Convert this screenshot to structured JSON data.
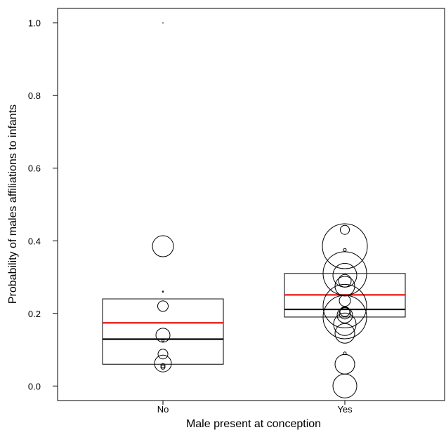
{
  "chart_data": {
    "type": "boxplot_bubble",
    "xlabel": "Male present at conception",
    "ylabel": "Probability of males affiliations to infants",
    "categories": [
      "No",
      "Yes"
    ],
    "ylim": [
      -0.04,
      1.04
    ],
    "yticks": [
      "0.0",
      "0.2",
      "0.4",
      "0.6",
      "0.8",
      "1.0"
    ],
    "ytick_values": [
      0,
      0.2,
      0.4,
      0.6,
      0.8,
      1.0
    ],
    "boxes": [
      {
        "category": "No",
        "q1": 0.06,
        "q3": 0.24,
        "median": 0.129,
        "mean": 0.174
      },
      {
        "category": "Yes",
        "q1": 0.19,
        "q3": 0.31,
        "median": 0.211,
        "mean": 0.251
      }
    ],
    "points": [
      {
        "category": "No",
        "y": 1.0,
        "size": 0.3
      },
      {
        "category": "No",
        "y": 0.385,
        "size": 15
      },
      {
        "category": "No",
        "y": 0.26,
        "size": 0.8
      },
      {
        "category": "No",
        "y": 0.22,
        "size": 7.5
      },
      {
        "category": "No",
        "y": 0.14,
        "size": 10
      },
      {
        "category": "No",
        "y": 0.125,
        "size": 1.5
      },
      {
        "category": "No",
        "y": 0.088,
        "size": 7
      },
      {
        "category": "No",
        "y": 0.062,
        "size": 12
      },
      {
        "category": "No",
        "y": 0.056,
        "size": 3
      },
      {
        "category": "No",
        "y": 0.052,
        "size": 3
      },
      {
        "category": "Yes",
        "y": 0.43,
        "size": 6.5
      },
      {
        "category": "Yes",
        "y": 0.385,
        "size": 32
      },
      {
        "category": "Yes",
        "y": 0.375,
        "size": 2
      },
      {
        "category": "Yes",
        "y": 0.31,
        "size": 31
      },
      {
        "category": "Yes",
        "y": 0.305,
        "size": 17
      },
      {
        "category": "Yes",
        "y": 0.29,
        "size": 9
      },
      {
        "category": "Yes",
        "y": 0.275,
        "size": 14
      },
      {
        "category": "Yes",
        "y": 0.235,
        "size": 8
      },
      {
        "category": "Yes",
        "y": 0.22,
        "size": 31
      },
      {
        "category": "Yes",
        "y": 0.205,
        "size": 7
      },
      {
        "category": "Yes",
        "y": 0.2,
        "size": 8
      },
      {
        "category": "Yes",
        "y": 0.195,
        "size": 11
      },
      {
        "category": "Yes",
        "y": 0.19,
        "size": 31
      },
      {
        "category": "Yes",
        "y": 0.17,
        "size": 16
      },
      {
        "category": "Yes",
        "y": 0.145,
        "size": 14
      },
      {
        "category": "Yes",
        "y": 0.09,
        "size": 2
      },
      {
        "category": "Yes",
        "y": 0.06,
        "size": 14
      },
      {
        "category": "Yes",
        "y": 0.0,
        "size": 17
      }
    ],
    "colors": {
      "mean": "#e8150f",
      "median": "#000000",
      "box": "#000000",
      "points": "#000000"
    },
    "grid": false
  }
}
